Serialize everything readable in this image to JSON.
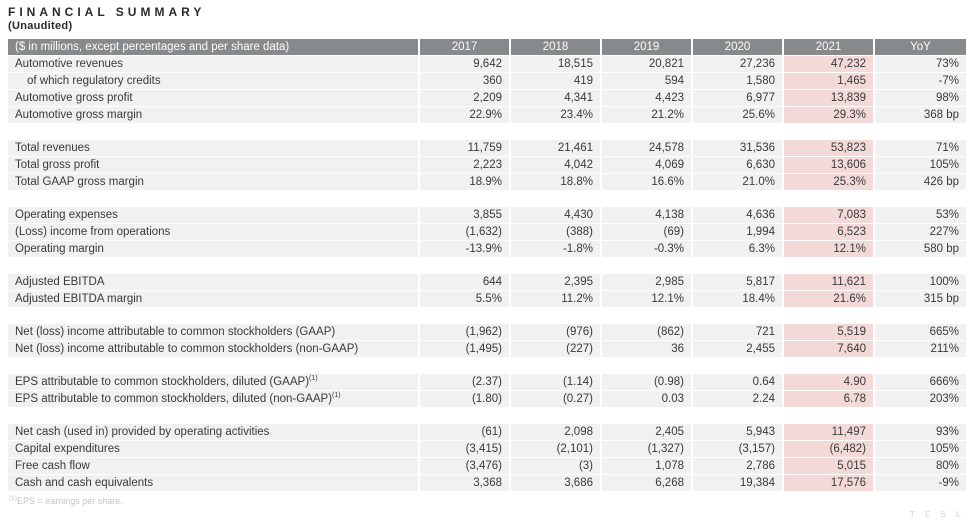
{
  "page": {
    "title": "FINANCIAL SUMMARY",
    "subtitle": "(Unaudited)",
    "footnote_ref": "(1)",
    "footnote": "EPS = earnings per share.",
    "watermark": "T E S L"
  },
  "colors": {
    "header_bg": "#88898b",
    "header_text": "#fdfdfd",
    "row_bg": "#f1f1f2",
    "highlight_2021_bg": "#f3dad8",
    "body_text": "#39393b",
    "footnote_text": "#c3c4c6"
  },
  "table": {
    "header": [
      "($ in millions, except percentages and per share data)",
      "2017",
      "2018",
      "2019",
      "2020",
      "2021",
      "YoY"
    ],
    "highlight_column": "2021",
    "sections": [
      {
        "rows": [
          {
            "label": "Automotive revenues",
            "indent": false,
            "sup": "",
            "values": [
              "9,642",
              "18,515",
              "20,821",
              "27,236",
              "47,232",
              "73%"
            ]
          },
          {
            "label": "of which regulatory credits",
            "indent": true,
            "sup": "",
            "values": [
              "360",
              "419",
              "594",
              "1,580",
              "1,465",
              "-7%"
            ]
          },
          {
            "label": "Automotive gross profit",
            "indent": false,
            "sup": "",
            "values": [
              "2,209",
              "4,341",
              "4,423",
              "6,977",
              "13,839",
              "98%"
            ]
          },
          {
            "label": "Automotive gross margin",
            "indent": false,
            "sup": "",
            "values": [
              "22.9%",
              "23.4%",
              "21.2%",
              "25.6%",
              "29.3%",
              "368 bp"
            ]
          }
        ]
      },
      {
        "rows": [
          {
            "label": "Total revenues",
            "indent": false,
            "sup": "",
            "values": [
              "11,759",
              "21,461",
              "24,578",
              "31,536",
              "53,823",
              "71%"
            ]
          },
          {
            "label": "Total gross profit",
            "indent": false,
            "sup": "",
            "values": [
              "2,223",
              "4,042",
              "4,069",
              "6,630",
              "13,606",
              "105%"
            ]
          },
          {
            "label": "Total GAAP gross margin",
            "indent": false,
            "sup": "",
            "values": [
              "18.9%",
              "18.8%",
              "16.6%",
              "21.0%",
              "25.3%",
              "426 bp"
            ]
          }
        ]
      },
      {
        "rows": [
          {
            "label": "Operating expenses",
            "indent": false,
            "sup": "",
            "values": [
              "3,855",
              "4,430",
              "4,138",
              "4,636",
              "7,083",
              "53%"
            ]
          },
          {
            "label": "(Loss) income from operations",
            "indent": false,
            "sup": "",
            "values": [
              "(1,632)",
              "(388)",
              "(69)",
              "1,994",
              "6,523",
              "227%"
            ]
          },
          {
            "label": "Operating margin",
            "indent": false,
            "sup": "",
            "values": [
              "-13.9%",
              "-1.8%",
              "-0.3%",
              "6.3%",
              "12.1%",
              "580 bp"
            ]
          }
        ]
      },
      {
        "rows": [
          {
            "label": "Adjusted EBITDA",
            "indent": false,
            "sup": "",
            "values": [
              "644",
              "2,395",
              "2,985",
              "5,817",
              "11,621",
              "100%"
            ]
          },
          {
            "label": "Adjusted EBITDA margin",
            "indent": false,
            "sup": "",
            "values": [
              "5.5%",
              "11.2%",
              "12.1%",
              "18.4%",
              "21.6%",
              "315 bp"
            ]
          }
        ]
      },
      {
        "rows": [
          {
            "label": "Net (loss) income attributable to common stockholders (GAAP)",
            "indent": false,
            "sup": "",
            "values": [
              "(1,962)",
              "(976)",
              "(862)",
              "721",
              "5,519",
              "665%"
            ]
          },
          {
            "label": "Net (loss) income attributable to common stockholders (non-GAAP)",
            "indent": false,
            "sup": "",
            "values": [
              "(1,495)",
              "(227)",
              "36",
              "2,455",
              "7,640",
              "211%"
            ]
          }
        ]
      },
      {
        "rows": [
          {
            "label": "EPS attributable to common stockholders, diluted (GAAP)",
            "indent": false,
            "sup": "(1)",
            "values": [
              "(2.37)",
              "(1.14)",
              "(0.98)",
              "0.64",
              "4.90",
              "666%"
            ]
          },
          {
            "label": "EPS attributable to common stockholders, diluted (non-GAAP)",
            "indent": false,
            "sup": "(1)",
            "values": [
              "(1.80)",
              "(0.27)",
              "0.03",
              "2.24",
              "6.78",
              "203%"
            ]
          }
        ]
      },
      {
        "rows": [
          {
            "label": "Net cash (used in) provided by operating activities",
            "indent": false,
            "sup": "",
            "values": [
              "(61)",
              "2,098",
              "2,405",
              "5,943",
              "11,497",
              "93%"
            ]
          },
          {
            "label": "Capital expenditures",
            "indent": false,
            "sup": "",
            "values": [
              "(3,415)",
              "(2,101)",
              "(1,327)",
              "(3,157)",
              "(6,482)",
              "105%"
            ]
          },
          {
            "label": "Free cash flow",
            "indent": false,
            "sup": "",
            "values": [
              "(3,476)",
              "(3)",
              "1,078",
              "2,786",
              "5,015",
              "80%"
            ]
          },
          {
            "label": "Cash and cash equivalents",
            "indent": false,
            "sup": "",
            "values": [
              "3,368",
              "3,686",
              "6,268",
              "19,384",
              "17,576",
              "-9%"
            ]
          }
        ]
      }
    ]
  }
}
